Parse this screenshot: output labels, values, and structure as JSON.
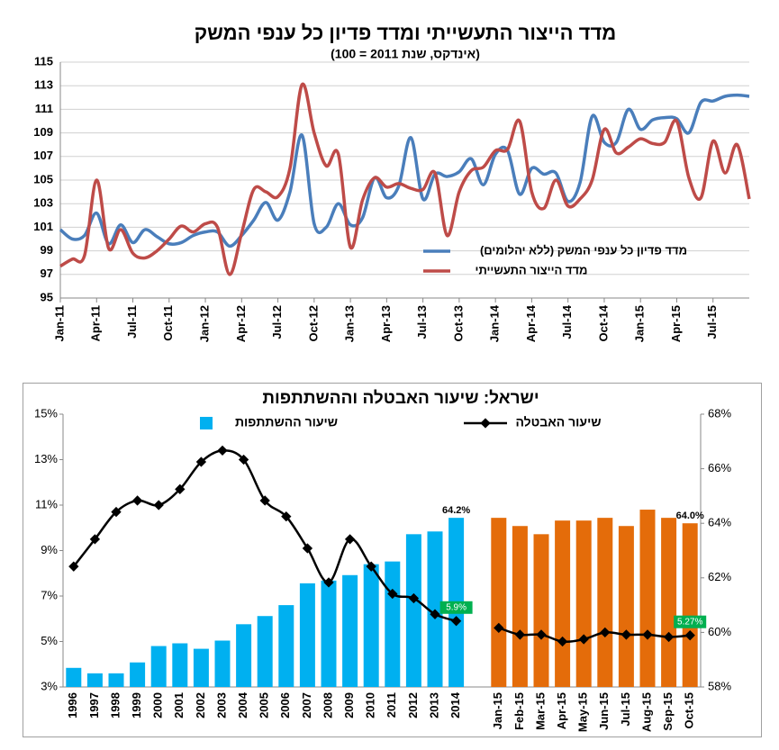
{
  "chart_data": [
    {
      "type": "line",
      "title": "מדד הייצור התעשייתי ומדד פדיון כל ענפי המשק",
      "subtitle": "(אינדקס, שנת 2011 = 100)",
      "categories": [
        "Jan-11",
        null,
        null,
        "Apr-11",
        null,
        null,
        "Jul-11",
        null,
        null,
        "Oct-11",
        null,
        null,
        "Jan-12",
        null,
        null,
        "Apr-12",
        null,
        null,
        "Jul-12",
        null,
        null,
        "Oct-12",
        null,
        null,
        "Jan-13",
        null,
        null,
        "Apr-13",
        null,
        null,
        "Jul-13",
        null,
        null,
        "Oct-13",
        null,
        null,
        "Jan-14",
        null,
        null,
        "Apr-14",
        null,
        null,
        "Jul-14",
        null,
        null,
        "Oct-14",
        null,
        null,
        "Jan-15",
        null,
        null,
        "Apr-15",
        null,
        null,
        "Jul-15",
        null,
        null,
        null
      ],
      "series": [
        {
          "name": "מדד פדיון כל ענפי המשק (ללא יהלומים)",
          "color": "#4a7ebb",
          "values": [
            100.8,
            100.0,
            100.3,
            102.2,
            99.6,
            101.2,
            99.7,
            100.8,
            100.2,
            99.6,
            99.7,
            100.3,
            100.6,
            100.6,
            99.4,
            100.3,
            101.6,
            103.1,
            101.6,
            104.0,
            108.8,
            101.3,
            101.0,
            103.0,
            101.2,
            101.8,
            105.2,
            103.5,
            104.5,
            108.6,
            103.4,
            105.5,
            105.3,
            105.7,
            106.8,
            104.6,
            107.2,
            107.5,
            103.8,
            106.0,
            105.5,
            105.6,
            103.2,
            104.8,
            110.4,
            108.2,
            108.2,
            111.0,
            109.3,
            110.1,
            110.3,
            110.2,
            109.0,
            111.6,
            111.7,
            112.1,
            112.2,
            112.1
          ]
        },
        {
          "name": "מדד הייצור התעשייתי",
          "color": "#be4b48",
          "values": [
            97.7,
            98.3,
            98.6,
            105.0,
            99.2,
            100.8,
            98.8,
            98.4,
            99.0,
            100.0,
            101.1,
            100.6,
            101.3,
            101.0,
            97.0,
            100.5,
            104.2,
            104.0,
            103.6,
            106.0,
            113.1,
            109.0,
            106.2,
            107.2,
            99.3,
            103.3,
            105.2,
            104.4,
            104.7,
            104.3,
            104.2,
            105.6,
            100.3,
            104.0,
            105.8,
            106.1,
            107.5,
            107.6,
            110.0,
            104.0,
            102.6,
            105.0,
            102.8,
            103.4,
            105.0,
            109.3,
            107.3,
            107.8,
            108.5,
            108.1,
            108.2,
            110.0,
            105.2,
            103.5,
            108.3,
            105.6,
            108.0,
            103.4
          ]
        }
      ],
      "ylim": [
        95,
        115
      ],
      "yticks": [
        95,
        97,
        99,
        101,
        103,
        105,
        107,
        109,
        111,
        113,
        115
      ],
      "grid": true
    },
    {
      "type": "combo",
      "title": "ישראל: שיעור האבטלה וההשתתפות",
      "categories": [
        "1996",
        "1997",
        "1998",
        "1999",
        "2000",
        "2001",
        "2002",
        "2003",
        "2004",
        "2005",
        "2006",
        "2007",
        "2008",
        "2009",
        "2010",
        "2011",
        "2012",
        "2013",
        "2014",
        null,
        "Jan-15",
        "Feb-15",
        "Mar-15",
        "Apr-15",
        "May-15",
        "Jun-15",
        "Jul-15",
        "Aug-15",
        "Sep-15",
        "Oct-15"
      ],
      "series": [
        {
          "name": "שיעור ההשתתפות",
          "type": "bar",
          "axis": "y2",
          "color": "#00b0f0",
          "values": [
            58.7,
            58.5,
            58.5,
            58.9,
            59.5,
            59.6,
            59.4,
            59.7,
            60.3,
            60.6,
            61.0,
            61.8,
            61.9,
            62.1,
            62.5,
            62.6,
            63.6,
            63.7,
            64.2,
            null,
            null,
            null,
            null,
            null,
            null,
            null,
            null,
            null,
            null,
            null
          ],
          "value_labels": [
            null,
            null,
            null,
            null,
            null,
            null,
            null,
            null,
            null,
            null,
            null,
            null,
            null,
            null,
            null,
            null,
            null,
            null,
            "64.2%",
            null,
            null,
            null,
            null,
            null,
            null,
            null,
            null,
            null,
            null,
            null
          ]
        },
        {
          "type": "bar",
          "axis": "y2",
          "color": "#e46c0a",
          "values": [
            null,
            null,
            null,
            null,
            null,
            null,
            null,
            null,
            null,
            null,
            null,
            null,
            null,
            null,
            null,
            null,
            null,
            null,
            null,
            null,
            64.2,
            63.9,
            63.6,
            64.1,
            64.1,
            64.2,
            63.9,
            64.5,
            64.2,
            64.0
          ],
          "value_labels": [
            null,
            null,
            null,
            null,
            null,
            null,
            null,
            null,
            null,
            null,
            null,
            null,
            null,
            null,
            null,
            null,
            null,
            null,
            null,
            null,
            null,
            null,
            null,
            null,
            null,
            null,
            null,
            null,
            null,
            "64.0%"
          ]
        },
        {
          "name": "שיעור האבטלה",
          "type": "line",
          "color": "#000000",
          "values": [
            8.3,
            9.5,
            10.7,
            11.2,
            11.0,
            11.7,
            12.9,
            13.4,
            13.0,
            11.2,
            10.5,
            9.1,
            7.6,
            9.5,
            8.3,
            7.1,
            6.9,
            6.2,
            5.9,
            null,
            5.6,
            5.3,
            5.3,
            5.0,
            5.1,
            5.4,
            5.3,
            5.3,
            5.2,
            5.27
          ],
          "value_labels": [
            null,
            null,
            null,
            null,
            null,
            null,
            null,
            null,
            null,
            null,
            null,
            null,
            null,
            null,
            null,
            null,
            null,
            null,
            "5.9%",
            null,
            null,
            null,
            null,
            null,
            null,
            null,
            null,
            null,
            null,
            "5.27%"
          ]
        }
      ],
      "ylim": [
        3,
        15
      ],
      "yticks": [
        {
          "value": 3,
          "label": "3%"
        },
        {
          "value": 5,
          "label": "5%"
        },
        {
          "value": 7,
          "label": "7%"
        },
        {
          "value": 9,
          "label": "9%"
        },
        {
          "value": 11,
          "label": "11%"
        },
        {
          "value": 13,
          "label": "13%"
        },
        {
          "value": 15,
          "label": "15%"
        }
      ],
      "y2lim": [
        58,
        68
      ],
      "y2ticks": [
        {
          "value": 58,
          "label": "58%"
        },
        {
          "value": 60,
          "label": "60%"
        },
        {
          "value": 62,
          "label": "62%"
        },
        {
          "value": 64,
          "label": "64%"
        },
        {
          "value": 66,
          "label": "66%"
        },
        {
          "value": 68,
          "label": "68%"
        }
      ],
      "grid": false
    }
  ]
}
